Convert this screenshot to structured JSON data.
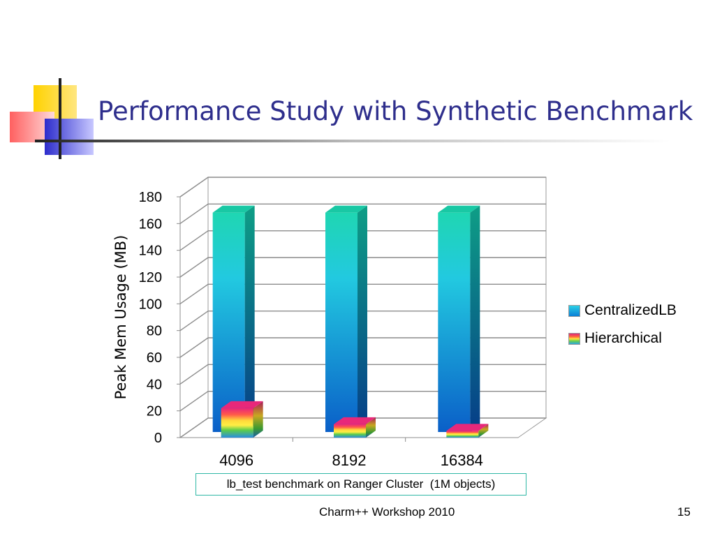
{
  "slide": {
    "title": "Performance Study with Synthetic Benchmark",
    "footer": "Charm++ Workshop 2010",
    "page_number": "15",
    "caption": "lb_test benchmark on Ranger Cluster  (1M objects)"
  },
  "chart_data": {
    "type": "bar",
    "title": "",
    "xlabel": "",
    "ylabel": "Peak Mem Usage (MB)",
    "categories": [
      "4096",
      "8192",
      "16384"
    ],
    "ylim": [
      0,
      180
    ],
    "yticks": [
      0,
      20,
      40,
      60,
      80,
      100,
      120,
      140,
      160,
      180
    ],
    "grid": true,
    "legend_position": "right",
    "series": [
      {
        "name": "CentralizedLB",
        "values": [
          164,
          164,
          164
        ],
        "color": "#1a9be0"
      },
      {
        "name": "Hierarchical",
        "values": [
          22,
          10,
          5
        ],
        "color": "#ff6a3a"
      }
    ]
  }
}
